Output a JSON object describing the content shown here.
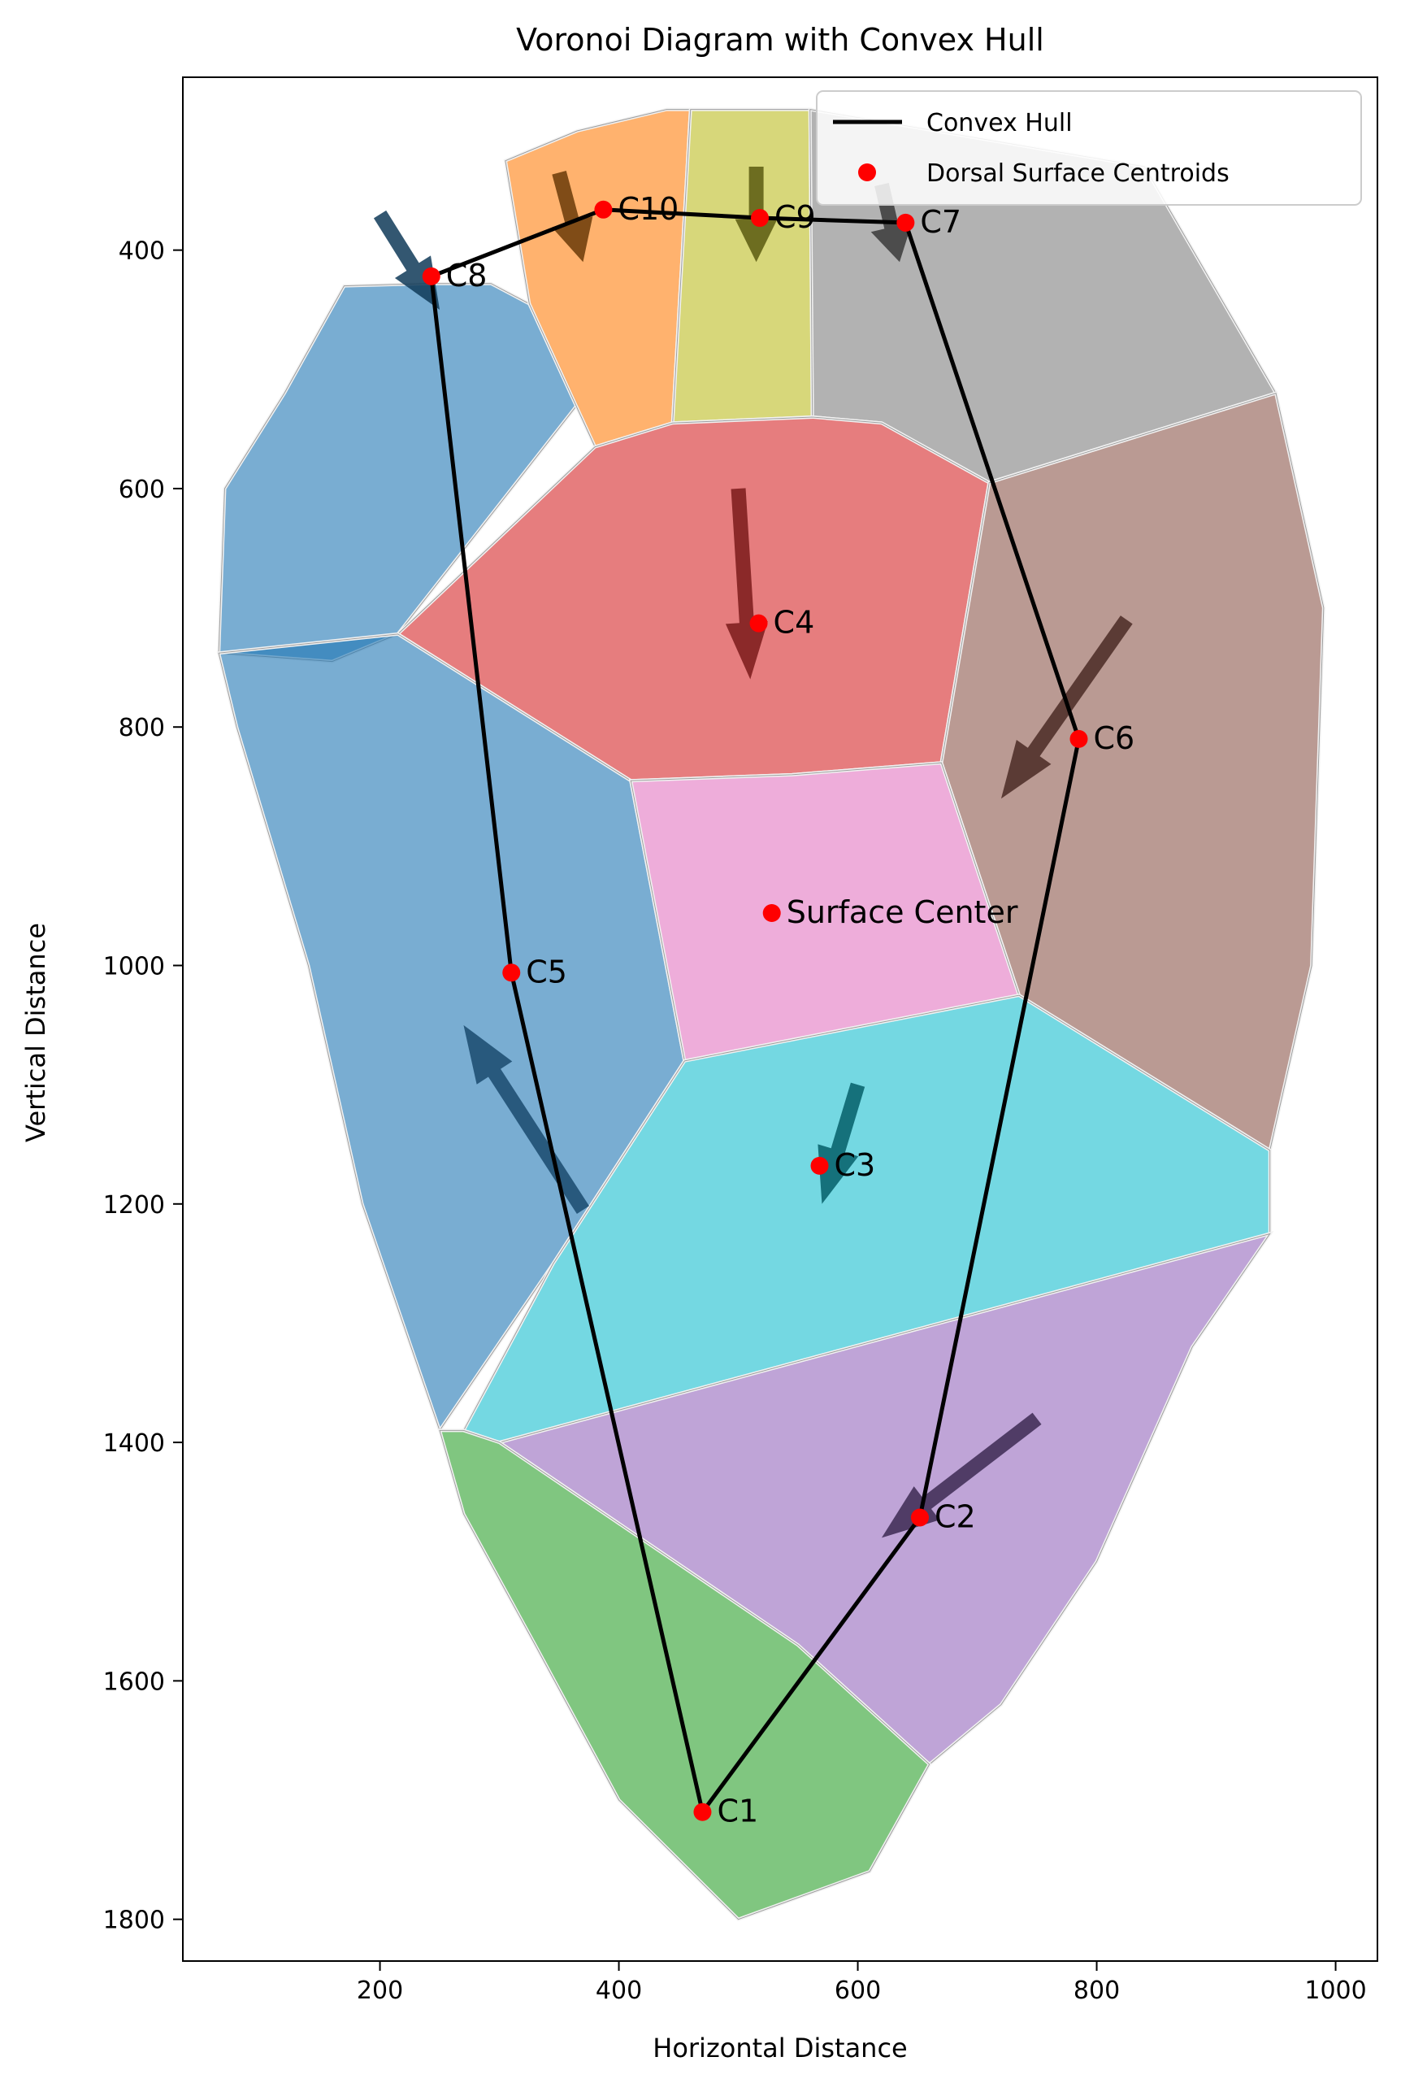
{
  "chart_data": {
    "type": "scatter",
    "title": "Voronoi Diagram with Convex Hull",
    "xlabel": "Horizontal Distance",
    "ylabel": "Vertical Distance",
    "xlim": [
      35,
      1035
    ],
    "ylim": [
      1835,
      255
    ],
    "y_inverted": true,
    "xticks": [
      200,
      400,
      600,
      800,
      1000
    ],
    "yticks": [
      400,
      600,
      800,
      1000,
      1200,
      1400,
      1600,
      1800
    ],
    "grid": false,
    "legend": {
      "placement": "upper right",
      "entries": [
        {
          "label": "Convex Hull",
          "marker": "line",
          "color": "#000000"
        },
        {
          "label": "Dorsal Surface Centroids",
          "marker": "dot",
          "color": "#ff0000"
        }
      ]
    },
    "points": [
      {
        "label": "C1",
        "x": 470,
        "y": 1710
      },
      {
        "label": "C2",
        "x": 652,
        "y": 1463
      },
      {
        "label": "C3",
        "x": 568,
        "y": 1168
      },
      {
        "label": "C4",
        "x": 517,
        "y": 713
      },
      {
        "label": "C5",
        "x": 310,
        "y": 1006
      },
      {
        "label": "C6",
        "x": 785,
        "y": 810
      },
      {
        "label": "C7",
        "x": 640,
        "y": 377
      },
      {
        "label": "C8",
        "x": 243,
        "y": 422
      },
      {
        "label": "C9",
        "x": 518,
        "y": 373
      },
      {
        "label": "C10",
        "x": 387,
        "y": 366
      },
      {
        "label": "Surface Center",
        "x": 528,
        "y": 956
      }
    ],
    "convex_hull": [
      "C1",
      "C2",
      "C6",
      "C7",
      "C9",
      "C10",
      "C8",
      "C5",
      "C1"
    ],
    "regions": [
      {
        "color": "#1f77b4",
        "polygon": [
          [
            65,
            738
          ],
          [
            160,
            745
          ],
          [
            215,
            722
          ],
          [
            365,
            530
          ],
          [
            325,
            445
          ],
          [
            293,
            428
          ],
          [
            240,
            428
          ],
          [
            170,
            430
          ],
          [
            120,
            520
          ],
          [
            70,
            600
          ]
        ]
      },
      {
        "color": "#ff7f0e",
        "polygon": [
          [
            305,
            325
          ],
          [
            365,
            300
          ],
          [
            440,
            282
          ],
          [
            460,
            282
          ],
          [
            445,
            545
          ],
          [
            380,
            565
          ],
          [
            325,
            445
          ]
        ]
      },
      {
        "color": "#bcbd22",
        "polygon": [
          [
            460,
            282
          ],
          [
            560,
            282
          ],
          [
            562,
            540
          ],
          [
            445,
            545
          ]
        ]
      },
      {
        "color": "#7f7f7f",
        "polygon": [
          [
            560,
            282
          ],
          [
            840,
            330
          ],
          [
            950,
            520
          ],
          [
            710,
            595
          ],
          [
            620,
            545
          ],
          [
            562,
            540
          ]
        ]
      },
      {
        "color": "#d62728",
        "polygon": [
          [
            380,
            565
          ],
          [
            445,
            545
          ],
          [
            562,
            540
          ],
          [
            620,
            545
          ],
          [
            710,
            595
          ],
          [
            670,
            830
          ],
          [
            545,
            840
          ],
          [
            410,
            845
          ],
          [
            215,
            722
          ]
        ]
      },
      {
        "color": "#8c564b",
        "polygon": [
          [
            710,
            595
          ],
          [
            950,
            520
          ],
          [
            990,
            700
          ],
          [
            980,
            1000
          ],
          [
            945,
            1155
          ],
          [
            735,
            1025
          ],
          [
            670,
            830
          ]
        ]
      },
      {
        "color": "#1f77b4",
        "polygon": [
          [
            65,
            738
          ],
          [
            215,
            722
          ],
          [
            410,
            845
          ],
          [
            455,
            1080
          ],
          [
            345,
            1250
          ],
          [
            250,
            1390
          ],
          [
            185,
            1200
          ],
          [
            140,
            1000
          ],
          [
            80,
            800
          ]
        ]
      },
      {
        "color": "#e377c2",
        "polygon": [
          [
            410,
            845
          ],
          [
            545,
            840
          ],
          [
            670,
            830
          ],
          [
            735,
            1025
          ],
          [
            455,
            1080
          ]
        ]
      },
      {
        "color": "#17becf",
        "polygon": [
          [
            455,
            1080
          ],
          [
            735,
            1025
          ],
          [
            945,
            1155
          ],
          [
            945,
            1225
          ],
          [
            300,
            1400
          ],
          [
            270,
            1390
          ],
          [
            345,
            1250
          ]
        ]
      },
      {
        "color": "#9467bd",
        "polygon": [
          [
            300,
            1400
          ],
          [
            945,
            1225
          ],
          [
            880,
            1320
          ],
          [
            800,
            1500
          ],
          [
            720,
            1620
          ],
          [
            660,
            1670
          ],
          [
            550,
            1570
          ]
        ]
      },
      {
        "color": "#2ca02c",
        "polygon": [
          [
            250,
            1390
          ],
          [
            270,
            1390
          ],
          [
            300,
            1400
          ],
          [
            550,
            1570
          ],
          [
            660,
            1670
          ],
          [
            610,
            1760
          ],
          [
            500,
            1800
          ],
          [
            400,
            1700
          ],
          [
            330,
            1570
          ],
          [
            270,
            1460
          ]
        ]
      }
    ],
    "arrows": [
      {
        "color": "#1a4a6e",
        "from": [
          370,
          1205
        ],
        "to": [
          270,
          1050
        ]
      },
      {
        "color": "#7a1a1a",
        "from": [
          500,
          600
        ],
        "to": [
          510,
          760
        ]
      },
      {
        "color": "#4a2a24",
        "from": [
          825,
          710
        ],
        "to": [
          720,
          860
        ]
      },
      {
        "color": "#055f68",
        "from": [
          600,
          1100
        ],
        "to": [
          570,
          1200
        ]
      },
      {
        "color": "#3c2a52",
        "from": [
          750,
          1380
        ],
        "to": [
          620,
          1480
        ]
      },
      {
        "color": "#0f3a58",
        "from": [
          200,
          370
        ],
        "to": [
          250,
          450
        ]
      },
      {
        "color": "#6a3a08",
        "from": [
          350,
          335
        ],
        "to": [
          370,
          410
        ]
      },
      {
        "color": "#5a5a10",
        "from": [
          515,
          330
        ],
        "to": [
          515,
          410
        ]
      },
      {
        "color": "#3a3a3a",
        "from": [
          620,
          345
        ],
        "to": [
          635,
          410
        ]
      }
    ]
  }
}
